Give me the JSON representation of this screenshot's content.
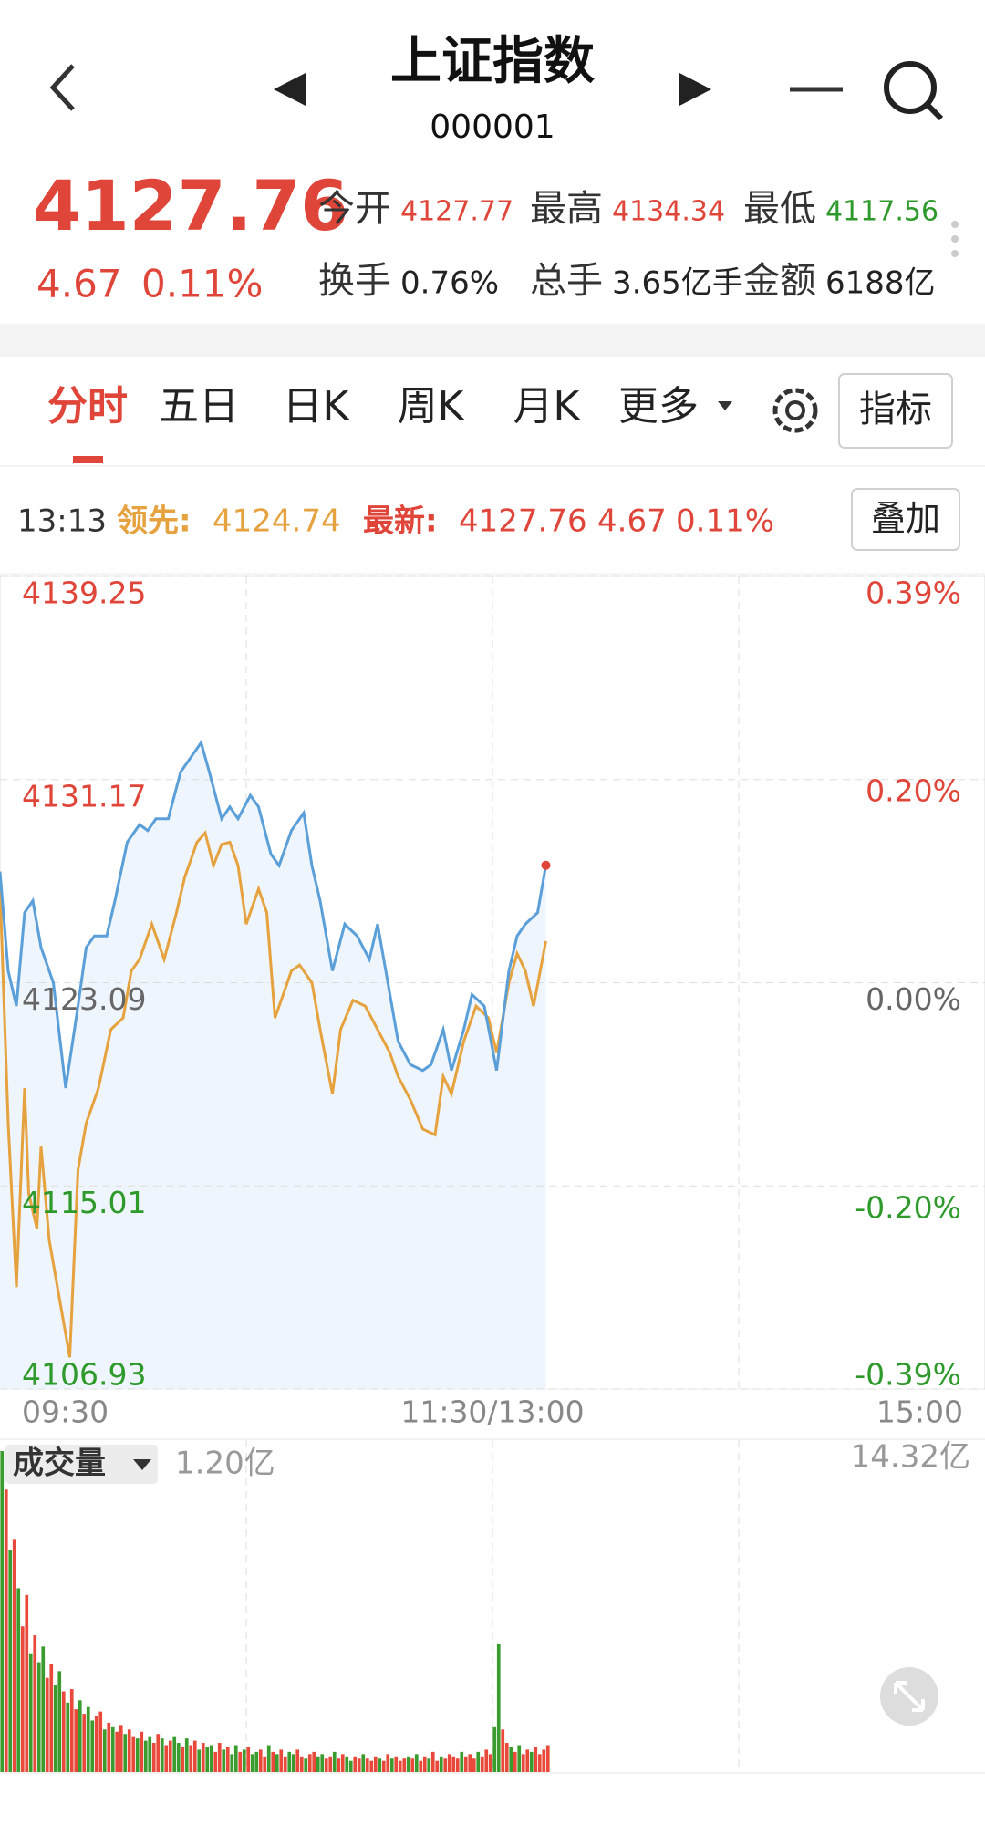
{
  "header": {
    "title": "上证指数",
    "code": "000001"
  },
  "quote": {
    "price": "4127.76",
    "change": "4.67",
    "change_pct": "0.11%",
    "color": "#e0453a",
    "stats": [
      {
        "label": "今开",
        "value": "4127.77",
        "color": "#e0453a"
      },
      {
        "label": "最高",
        "value": "4134.34",
        "color": "#e0453a"
      },
      {
        "label": "最低",
        "value": "4117.56",
        "color": "#2f9a2c"
      },
      {
        "label": "换手",
        "value": "0.76%",
        "color": "#222222"
      },
      {
        "label": "总手",
        "value": "3.65亿手",
        "color": "#222222"
      },
      {
        "label": "金额",
        "value": "6188亿",
        "color": "#222222"
      }
    ]
  },
  "tabs": [
    "分时",
    "五日",
    "日K",
    "周K",
    "月K",
    "更多"
  ],
  "indicator_button": "指标",
  "info": {
    "time": "13:13",
    "lead_label": "领先:",
    "lead_value": "4124.74",
    "latest_label": "最新:",
    "latest_value": "4127.76",
    "latest_change": "4.67",
    "latest_pct": "0.11%",
    "overlay_button": "叠加"
  },
  "chart_data": [
    {
      "type": "line",
      "xlim": [
        0,
        240
      ],
      "xticks": [
        {
          "value": 0,
          "label": "09:30"
        },
        {
          "value": 120,
          "label": "11:30/13:00"
        },
        {
          "value": 240,
          "label": "15:00"
        }
      ],
      "ylim": [
        4106.93,
        4139.25
      ],
      "yticks": [
        4106.93,
        4115.01,
        4123.09,
        4131.17,
        4139.25
      ],
      "y2lim": [
        -0.39,
        0.39
      ],
      "y2ticks": [
        {
          "value": -0.39,
          "label": "-0.39%"
        },
        {
          "value": -0.2,
          "label": "-0.20%"
        },
        {
          "value": 0,
          "label": "0.00%"
        },
        {
          "value": 0.2,
          "label": "0.20%"
        },
        {
          "value": 0.39,
          "label": "0.39%"
        }
      ],
      "grid": true,
      "up_color": "#e0453a",
      "down_color": "#2f9a2c",
      "flat_color": "#666666",
      "series": [
        {
          "color": "#5b9fd9",
          "fill": "#eef5fc",
          "x": [
            0,
            2,
            4,
            6,
            8,
            10,
            13,
            16,
            19,
            21,
            23,
            26,
            28,
            31,
            34,
            36,
            38,
            41,
            44,
            47,
            49,
            51,
            54,
            56,
            58,
            61,
            63,
            66,
            68,
            71,
            74,
            76,
            78,
            81,
            84,
            87,
            90,
            92,
            94,
            97,
            100,
            103,
            105,
            108,
            110,
            113,
            115,
            118,
            121,
            124,
            126,
            128,
            131,
            133
          ],
          "values": [
            4127.51,
            4123.56,
            4122.16,
            4125.88,
            4126.35,
            4124.49,
            4123.09,
            4118.9,
            4122.16,
            4124.49,
            4124.95,
            4124.95,
            4126.35,
            4128.68,
            4129.38,
            4129.14,
            4129.61,
            4129.61,
            4131.47,
            4132.17,
            4132.64,
            4131.47,
            4129.61,
            4130.08,
            4129.61,
            4130.54,
            4130.08,
            4128.21,
            4127.75,
            4129.14,
            4129.84,
            4127.75,
            4126.35,
            4123.56,
            4125.42,
            4124.95,
            4124.02,
            4125.42,
            4123.56,
            4120.76,
            4119.83,
            4119.6,
            4119.83,
            4121.23,
            4119.6,
            4121.23,
            4122.62,
            4122.16,
            4119.6,
            4123.56,
            4124.95,
            4125.42,
            4125.88,
            4127.76
          ]
        },
        {
          "color": "#e6a23e",
          "x": [
            0,
            2,
            4,
            6,
            7,
            9,
            10,
            12,
            14,
            17,
            19,
            21,
            24,
            27,
            30,
            32,
            34,
            37,
            40,
            43,
            45,
            48,
            50,
            52,
            54,
            56,
            58,
            60,
            63,
            65,
            67,
            69,
            71,
            73,
            76,
            78,
            81,
            83,
            86,
            89,
            92,
            95,
            97,
            100,
            103,
            106,
            108,
            110,
            113,
            116,
            119,
            121,
            124,
            126,
            128,
            130,
            133
          ],
          "values": [
            4126.82,
            4117.5,
            4110.98,
            4118.9,
            4114.71,
            4113.31,
            4116.57,
            4112.85,
            4110.98,
            4108.19,
            4115.64,
            4117.5,
            4118.9,
            4121.23,
            4121.69,
            4123.56,
            4124.02,
            4125.42,
            4124.02,
            4125.88,
            4127.28,
            4128.68,
            4129.05,
            4127.75,
            4128.59,
            4128.68,
            4127.75,
            4125.42,
            4126.82,
            4125.88,
            4121.69,
            4122.62,
            4123.56,
            4123.79,
            4123.09,
            4121.23,
            4118.67,
            4121.23,
            4122.39,
            4122.16,
            4121.23,
            4120.3,
            4119.36,
            4118.43,
            4117.27,
            4117.04,
            4119.36,
            4118.67,
            4120.76,
            4122.16,
            4121.69,
            4120.3,
            4123.09,
            4124.25,
            4123.56,
            4122.16,
            4124.74
          ]
        }
      ]
    },
    {
      "type": "bar",
      "title": "成交量",
      "current_label": "1.20亿",
      "xlim": [
        0,
        240
      ],
      "ylim": [
        0,
        14.32
      ],
      "yticks": [
        {
          "value": 14.32,
          "label": "14.32亿"
        }
      ],
      "values": [
        14.32,
        12.6,
        9.9,
        10.4,
        8.2,
        6.5,
        7.9,
        5.3,
        6.1,
        4.9,
        5.6,
        4.2,
        4.8,
        3.9,
        4.5,
        3.6,
        3.1,
        3.7,
        2.8,
        3.2,
        2.6,
        2.9,
        2.3,
        2.5,
        2.7,
        1.9,
        2.2,
        2.0,
        1.8,
        2.1,
        1.7,
        1.9,
        1.6,
        1.5,
        1.8,
        1.4,
        1.6,
        1.3,
        1.7,
        1.5,
        1.2,
        1.4,
        1.6,
        1.3,
        1.1,
        1.5,
        1.2,
        1.4,
        1.0,
        1.3,
        1.1,
        1.2,
        0.9,
        1.3,
        1.0,
        1.1,
        0.8,
        1.2,
        0.9,
        1.0,
        1.1,
        0.8,
        0.9,
        1.0,
        0.7,
        1.2,
        0.9,
        0.8,
        1.0,
        0.7,
        0.9,
        0.8,
        1.0,
        0.7,
        0.6,
        0.8,
        0.9,
        0.7,
        0.8,
        0.6,
        0.7,
        0.9,
        0.6,
        0.8,
        0.7,
        0.5,
        0.7,
        0.6,
        0.8,
        0.6,
        0.5,
        0.7,
        0.6,
        0.5,
        0.8,
        0.6,
        0.7,
        0.5,
        0.6,
        0.7,
        0.6,
        0.8,
        0.5,
        0.7,
        0.6,
        0.9,
        0.5,
        0.7,
        0.6,
        0.8,
        0.7,
        0.6,
        0.9,
        0.7,
        0.8,
        0.6,
        0.9,
        0.7,
        1.0,
        0.8,
        2.0,
        5.7,
        1.9,
        1.3,
        1.1,
        0.9,
        1.2,
        0.8,
        1.0,
        0.9,
        1.1,
        0.8,
        1.0,
        1.2
      ],
      "colors": [
        "#3a9b2f",
        "#e8493b",
        "#3a9b2f",
        "#e8493b",
        "#3a9b2f",
        "#e8493b",
        "#e8493b",
        "#3a9b2f",
        "#e8493b",
        "#3a9b2f",
        "#3a9b2f",
        "#e8493b",
        "#e8493b",
        "#3a9b2f",
        "#3a9b2f",
        "#e8493b",
        "#3a9b2f",
        "#e8493b",
        "#e8493b",
        "#3a9b2f",
        "#e8493b",
        "#3a9b2f",
        "#3a9b2f",
        "#e8493b",
        "#e8493b",
        "#3a9b2f",
        "#e8493b",
        "#3a9b2f",
        "#e8493b",
        "#e8493b",
        "#3a9b2f",
        "#e8493b",
        "#e8493b",
        "#3a9b2f",
        "#e8493b",
        "#3a9b2f",
        "#3a9b2f",
        "#e8493b",
        "#e8493b",
        "#3a9b2f",
        "#e8493b",
        "#e8493b",
        "#3a9b2f",
        "#3a9b2f",
        "#e8493b",
        "#3a9b2f",
        "#e8493b",
        "#e8493b",
        "#3a9b2f",
        "#e8493b",
        "#3a9b2f",
        "#3a9b2f",
        "#e8493b",
        "#e8493b",
        "#3a9b2f",
        "#e8493b",
        "#3a9b2f",
        "#3a9b2f",
        "#e8493b",
        "#3a9b2f",
        "#e8493b",
        "#3a9b2f",
        "#3a9b2f",
        "#e8493b",
        "#e8493b",
        "#3a9b2f",
        "#e8493b",
        "#3a9b2f",
        "#e8493b",
        "#e8493b",
        "#3a9b2f",
        "#3a9b2f",
        "#e8493b",
        "#e8493b",
        "#3a9b2f",
        "#e8493b",
        "#e8493b",
        "#3a9b2f",
        "#3a9b2f",
        "#e8493b",
        "#e8493b",
        "#3a9b2f",
        "#e8493b",
        "#e8493b",
        "#3a9b2f",
        "#3a9b2f",
        "#e8493b",
        "#e8493b",
        "#3a9b2f",
        "#e8493b",
        "#e8493b",
        "#e8493b",
        "#3a9b2f",
        "#e8493b",
        "#e8493b",
        "#3a9b2f",
        "#e8493b",
        "#e8493b",
        "#e8493b",
        "#3a9b2f",
        "#e8493b",
        "#3a9b2f",
        "#e8493b",
        "#e8493b",
        "#3a9b2f",
        "#e8493b",
        "#e8493b",
        "#3a9b2f",
        "#e8493b",
        "#e8493b",
        "#e8493b",
        "#e8493b",
        "#3a9b2f",
        "#e8493b",
        "#e8493b",
        "#e8493b",
        "#3a9b2f",
        "#e8493b",
        "#e8493b",
        "#e8493b",
        "#3a9b2f",
        "#3a9b2f",
        "#e8493b",
        "#e8493b",
        "#3a9b2f",
        "#e8493b",
        "#3a9b2f",
        "#e8493b",
        "#e8493b",
        "#3a9b2f",
        "#e8493b",
        "#e8493b",
        "#e8493b",
        "#e8493b"
      ]
    }
  ]
}
